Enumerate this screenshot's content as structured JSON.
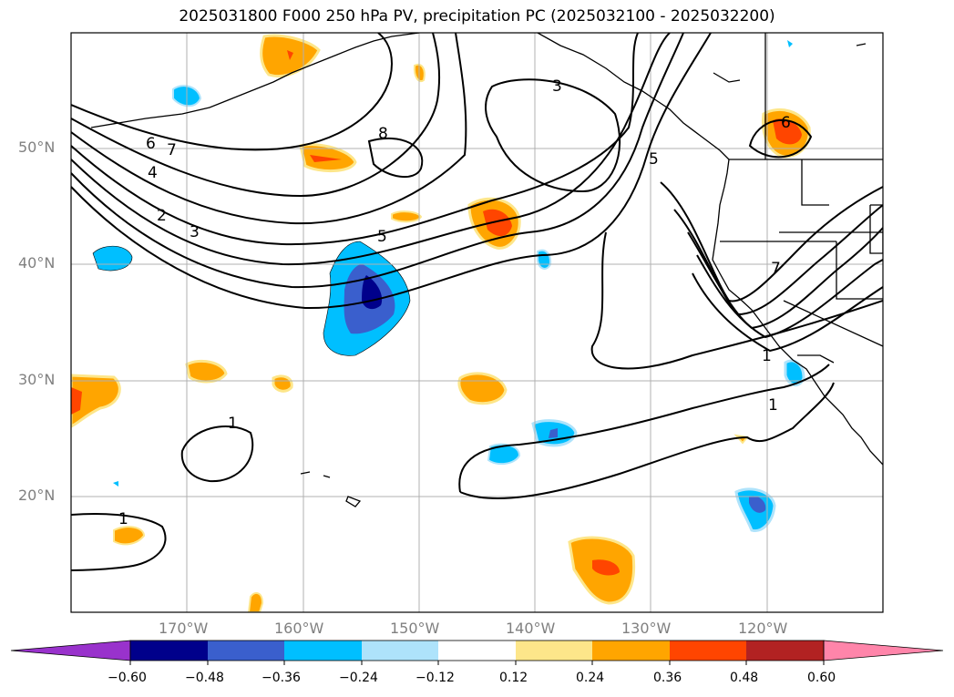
{
  "title": "2025031800 F000 250 hPa PV, precipitation PC (2025032100 - 2025032200)",
  "lat_labels": [
    "50°N",
    "40°N",
    "30°N",
    "20°N"
  ],
  "lon_labels": [
    "170°W",
    "160°W",
    "150°W",
    "140°W",
    "130°W",
    "120°W"
  ],
  "contour_labels": [
    "8",
    "7",
    "6",
    "5",
    "4",
    "3",
    "2",
    "1"
  ],
  "colorbar": {
    "ticks": [
      "−0.60",
      "−0.48",
      "−0.36",
      "−0.24",
      "−0.12",
      "0.12",
      "0.24",
      "0.36",
      "0.48",
      "0.60"
    ],
    "colors": [
      "#9932cc",
      "#00008b",
      "#3a5fcd",
      "#00bfff",
      "#aee3fb",
      "#ffffff",
      "#fde68a",
      "#ffa500",
      "#ff4500",
      "#b22222",
      "#ff85aa"
    ]
  },
  "colors": {
    "grid": "#b0b0b0",
    "contour": "#000000",
    "coast": "#000000"
  }
}
